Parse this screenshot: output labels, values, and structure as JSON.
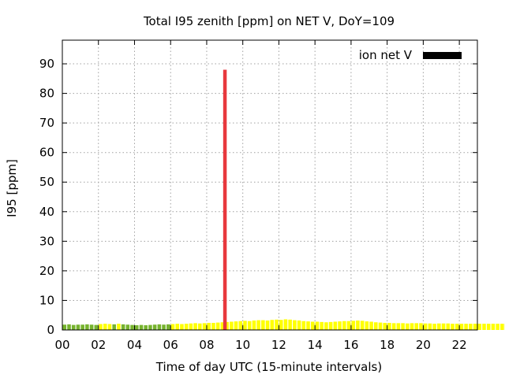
{
  "colors": {
    "low": "#76b32e",
    "moderate": "#ffff00",
    "high": "#e8383d",
    "legend_swatch": "#000000"
  },
  "chart_data": {
    "type": "bar",
    "title": "Total I95 zenith [ppm] on NET V, DoY=109",
    "xlabel": "Time of day UTC (15-minute intervals)",
    "ylabel": "I95 [ppm]",
    "xlim": [
      0,
      23
    ],
    "ylim": [
      0,
      98
    ],
    "x_ticks": [
      "00",
      "02",
      "04",
      "06",
      "08",
      "10",
      "12",
      "14",
      "16",
      "18",
      "20",
      "22"
    ],
    "y_ticks": [
      0,
      10,
      20,
      30,
      40,
      50,
      60,
      70,
      80,
      90
    ],
    "grid": true,
    "legend": {
      "label": "ion net V",
      "position": "top-right"
    },
    "interval_hours": 0.25,
    "color_scale": [
      {
        "max": 2,
        "color_key": "low"
      },
      {
        "max": 50,
        "color_key": "moderate"
      },
      {
        "max": 1000,
        "color_key": "high"
      }
    ],
    "values": [
      1.8,
      1.9,
      1.7,
      1.8,
      1.8,
      1.9,
      1.8,
      1.7,
      2.0,
      2.1,
      2.0,
      1.9,
      2.1,
      1.9,
      1.8,
      1.7,
      1.6,
      1.7,
      1.6,
      1.7,
      1.8,
      1.9,
      1.8,
      1.9,
      2.0,
      2.1,
      2.0,
      2.1,
      2.2,
      2.3,
      2.2,
      2.3,
      2.4,
      2.4,
      2.5,
      2.6,
      2.7,
      2.8,
      2.9,
      3.0,
      3.1,
      3.0,
      3.2,
      3.3,
      3.3,
      3.2,
      3.4,
      3.5,
      3.4,
      3.6,
      3.5,
      3.3,
      3.2,
      3.0,
      2.9,
      2.8,
      2.8,
      2.7,
      2.6,
      2.7,
      2.8,
      2.9,
      3.0,
      3.0,
      3.1,
      3.2,
      3.1,
      2.9,
      2.8,
      2.6,
      2.5,
      2.4,
      2.4,
      2.3,
      2.3,
      2.3,
      2.2,
      2.3,
      2.3,
      2.3,
      2.2,
      2.2,
      2.1,
      2.2,
      2.2,
      2.2,
      2.1,
      2.1,
      2.1,
      2.1,
      2.1,
      2.1,
      2.1,
      2.1,
      2.1,
      2.1,
      2.1,
      2.1,
      2.1,
      2.1,
      2.1,
      2.1,
      2.1,
      2.1,
      2.1,
      2.1,
      2.1,
      2.1,
      2.1,
      2.1,
      2.1,
      2.1,
      2.1,
      2.1,
      2.1,
      2.1,
      2.1,
      2.1,
      2.1
    ],
    "spike": {
      "x": 9.0,
      "value": 88
    }
  }
}
